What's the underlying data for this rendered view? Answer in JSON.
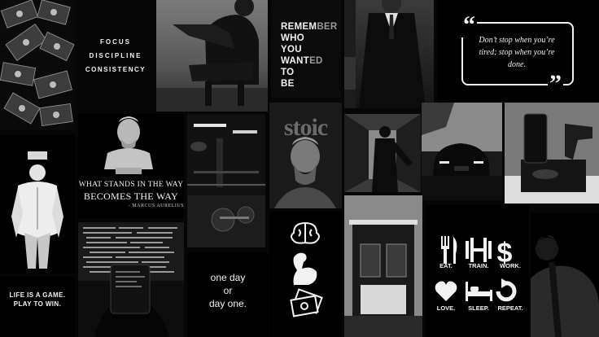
{
  "focus_words": [
    "FOCUS",
    "DISCIPLINE",
    "CONSISTENCY"
  ],
  "remember": {
    "line1_a": "REMEM",
    "line1_b": "BER",
    "line2": "WHO",
    "line3": "YOU",
    "line4_a": "WANT",
    "line4_b": "ED",
    "line5": "TO",
    "line6": "BE"
  },
  "quote_box": {
    "open_mark": "“",
    "text": "Don’t stop when you’re tired; stop when you’re done.",
    "close_mark": "”"
  },
  "stoic_quote": {
    "line1": "WHAT STANDS IN THE WAY",
    "line2": "BECOMES THE WAY",
    "author": "- MARCUS AURELIUS"
  },
  "statue_word": "stoic",
  "life_game": {
    "line1": "LIFE IS A GAME.",
    "line2": "PLAY TO WIN."
  },
  "one_day": {
    "line1": "one day",
    "line2": "or",
    "line3": "day one."
  },
  "routine": [
    {
      "icon": "fork-knife-icon",
      "label": "EAT."
    },
    {
      "icon": "dumbbell-icon",
      "label": "TRAIN."
    },
    {
      "icon": "dollar-icon",
      "label": "WORK."
    },
    {
      "icon": "heart-icon",
      "label": "LOVE."
    },
    {
      "icon": "bed-icon",
      "label": "SLEEP."
    },
    {
      "icon": "repeat-icon",
      "label": "REPEAT."
    }
  ],
  "colors": {
    "background": "#060606",
    "text": "#f2f2f2",
    "muted_text": "#8a8a8a"
  }
}
